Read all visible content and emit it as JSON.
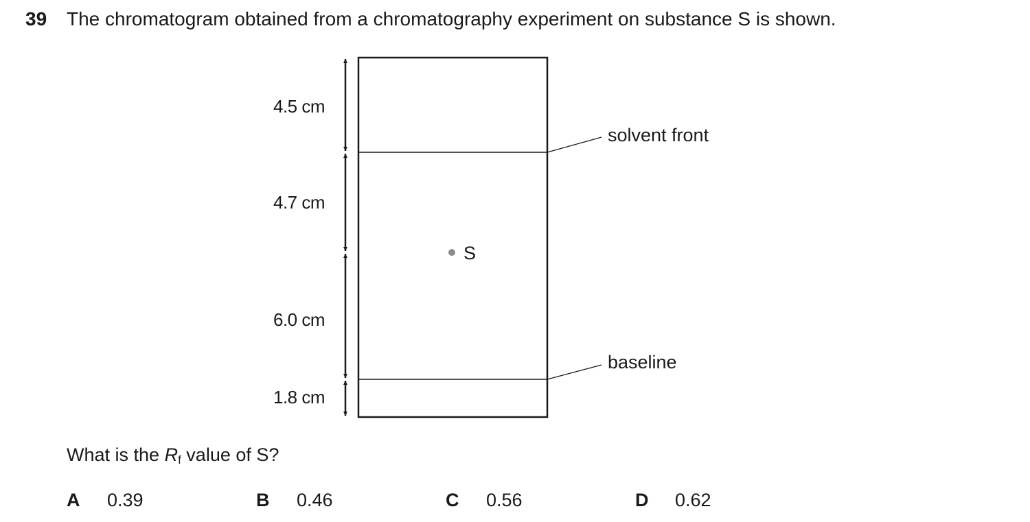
{
  "question": {
    "number": "39",
    "stem": "The chromatogram obtained from a chromatography experiment on substance S is shown.",
    "prompt_before": "What is the ",
    "prompt_symbol": "R",
    "prompt_subscript": "f",
    "prompt_after": " value of S?"
  },
  "diagram": {
    "dimensions": [
      "4.5 cm",
      "4.7 cm",
      "6.0 cm",
      "1.8 cm"
    ],
    "solvent_front_label": "solvent front",
    "baseline_label": "baseline",
    "spot_label": "S",
    "spot_color": "#8c8c8c",
    "line_color": "#1a1a1a"
  },
  "options": [
    {
      "letter": "A",
      "value": "0.39"
    },
    {
      "letter": "B",
      "value": "0.46"
    },
    {
      "letter": "C",
      "value": "0.56"
    },
    {
      "letter": "D",
      "value": "0.62"
    }
  ]
}
